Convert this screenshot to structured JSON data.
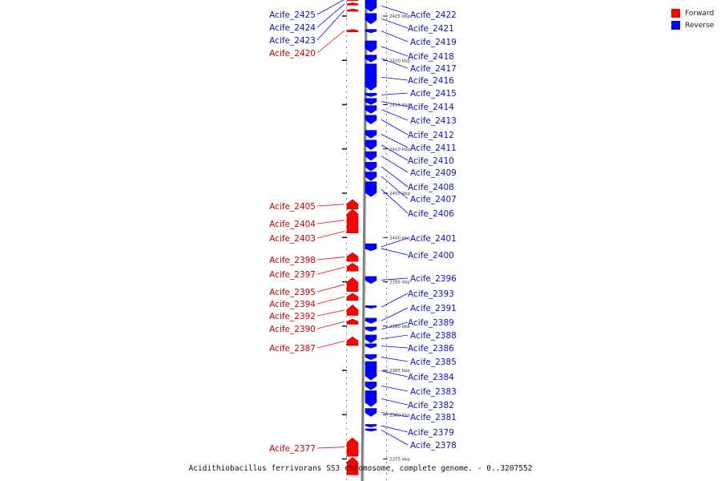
{
  "colors": {
    "forward": "#ff0000",
    "reverse": "#0000ff",
    "forward_label": "#cc0000",
    "reverse_label": "#1010c0",
    "backbone": "#808080"
  },
  "legend": {
    "forward_label": "Forward",
    "reverse_label": "Reverse"
  },
  "caption": "Acidithiobacillus ferrivorans SS3 chromosome, complete genome. - 0..3207552",
  "scale_ticks": [
    {
      "label": "2425 kbp",
      "kbp": 2425
    },
    {
      "label": "2420 kbp",
      "kbp": 2420
    },
    {
      "label": "2415 kbp",
      "kbp": 2415
    },
    {
      "label": "2410 kbp",
      "kbp": 2410
    },
    {
      "label": "2405 kbp",
      "kbp": 2405
    },
    {
      "label": "2400 kbp",
      "kbp": 2400
    },
    {
      "label": "2395 kbp",
      "kbp": 2395
    },
    {
      "label": "2390 kbp",
      "kbp": 2390
    },
    {
      "label": "2385 kbp",
      "kbp": 2385
    },
    {
      "label": "2380 kbp",
      "kbp": 2380
    },
    {
      "label": "2375 kbp",
      "kbp": 2375
    }
  ],
  "reverse_genes": [
    {
      "name": "Acife_2422",
      "start": 2426.8,
      "end": 2425.5
    },
    {
      "name": "Acife_2421",
      "start": 2425.3,
      "end": 2424.1
    },
    {
      "name": "Acife_2419",
      "start": 2423.5,
      "end": 2423.1
    },
    {
      "name": "Acife_2418",
      "start": 2422.2,
      "end": 2420.9
    },
    {
      "name": "Acife_2417",
      "start": 2420.6,
      "end": 2419.8
    },
    {
      "name": "Acife_2416",
      "start": 2419.6,
      "end": 2416.6
    },
    {
      "name": "Acife_2415",
      "start": 2416.3,
      "end": 2415.9
    },
    {
      "name": "Acife_2414",
      "start": 2415.7,
      "end": 2415.0
    },
    {
      "name": "Acife_2413",
      "start": 2414.9,
      "end": 2414.0
    },
    {
      "name": "Acife_2412",
      "start": 2413.8,
      "end": 2412.8
    },
    {
      "name": "Acife_2411",
      "start": 2412.1,
      "end": 2411.2
    },
    {
      "name": "Acife_2410",
      "start": 2411.0,
      "end": 2409.9
    },
    {
      "name": "Acife_2409",
      "start": 2409.7,
      "end": 2408.7
    },
    {
      "name": "Acife_2408",
      "start": 2408.5,
      "end": 2407.5
    },
    {
      "name": "Acife_2407",
      "start": 2407.4,
      "end": 2406.4
    },
    {
      "name": "Acife_2406",
      "start": 2406.3,
      "end": 2404.6
    },
    {
      "name": "Acife_2401",
      "start": 2399.3,
      "end": 2398.6
    },
    {
      "name": "Acife_2400",
      "start": 2399.0,
      "end": 2398.5
    },
    {
      "name": "Acife_2396",
      "start": 2395.6,
      "end": 2394.8
    },
    {
      "name": "Acife_2393",
      "start": 2392.3,
      "end": 2392.0
    },
    {
      "name": "Acife_2391",
      "start": 2390.9,
      "end": 2390.3
    },
    {
      "name": "Acife_2389",
      "start": 2389.9,
      "end": 2389.4
    },
    {
      "name": "Acife_2388",
      "start": 2389.0,
      "end": 2388.1
    },
    {
      "name": "Acife_2386",
      "start": 2388.0,
      "end": 2387.5
    },
    {
      "name": "Acife_2385",
      "start": 2386.8,
      "end": 2386.2
    },
    {
      "name": "Acife_2384",
      "start": 2386.0,
      "end": 2383.9
    },
    {
      "name": "Acife_2383",
      "start": 2383.7,
      "end": 2382.8
    },
    {
      "name": "Acife_2382",
      "start": 2382.7,
      "end": 2380.9
    },
    {
      "name": "Acife_2381",
      "start": 2380.7,
      "end": 2379.8
    },
    {
      "name": "Acife_2379",
      "start": 2378.9,
      "end": 2378.6
    },
    {
      "name": "Acife_2378",
      "start": 2378.4,
      "end": 2378.2
    }
  ],
  "forward_genes": [
    {
      "name": "Acife_2425",
      "start": 2427.0,
      "end": 2426.9
    },
    {
      "name": "Acife_2424",
      "start": 2426.5,
      "end": 2426.4
    },
    {
      "name": "Acife_2423",
      "start": 2425.8,
      "end": 2425.7
    },
    {
      "name": "Acife_2420",
      "start": 2423.5,
      "end": 2423.2
    },
    {
      "name": "Acife_2405",
      "start": 2403.2,
      "end": 2404.3
    },
    {
      "name": "Acife_2404",
      "start": 2400.7,
      "end": 2403.2
    },
    {
      "name": "Acife_2403",
      "start": 2400.5,
      "end": 2400.9
    },
    {
      "name": "Acife_2398",
      "start": 2397.3,
      "end": 2398.3
    },
    {
      "name": "Acife_2397",
      "start": 2396.2,
      "end": 2397.1
    },
    {
      "name": "Acife_2395",
      "start": 2393.9,
      "end": 2395.5
    },
    {
      "name": "Acife_2394",
      "start": 2392.9,
      "end": 2393.7
    },
    {
      "name": "Acife_2392",
      "start": 2391.2,
      "end": 2392.4
    },
    {
      "name": "Acife_2390",
      "start": 2390.2,
      "end": 2390.8
    },
    {
      "name": "Acife_2387",
      "start": 2387.8,
      "end": 2388.8
    },
    {
      "name": "Acife_2377",
      "start": 2375.3,
      "end": 2377.4
    },
    {
      "name": "",
      "start": 2373.2,
      "end": 2375.2
    }
  ]
}
